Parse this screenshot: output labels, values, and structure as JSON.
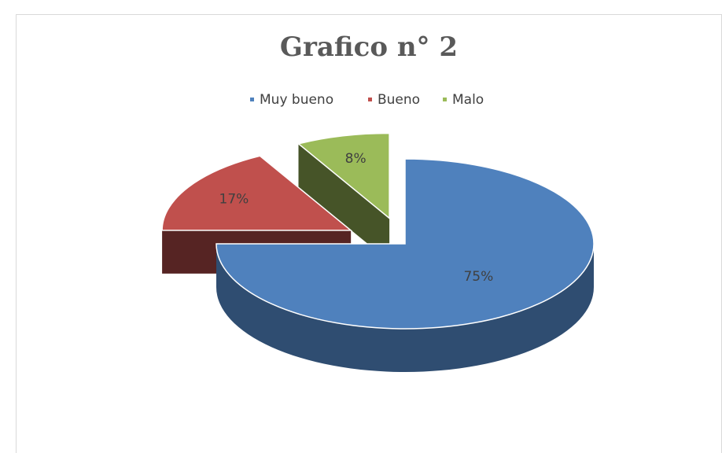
{
  "chart_data": {
    "type": "pie",
    "title": "Grafico n° 2",
    "categories": [
      "Muy bueno",
      "Bueno",
      "Malo"
    ],
    "values": [
      75,
      17,
      8
    ],
    "value_labels": [
      "75%",
      "17%",
      "8%"
    ],
    "colors": [
      "#4f81bd",
      "#c0504d",
      "#9bbb59"
    ],
    "legend": "top"
  }
}
